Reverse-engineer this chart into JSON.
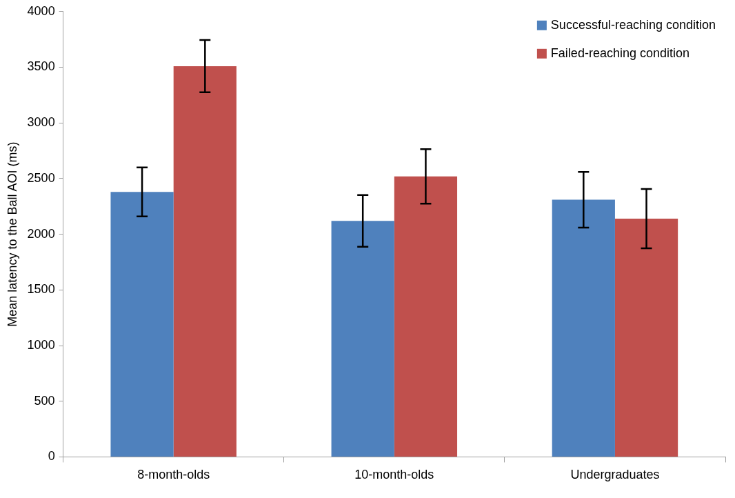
{
  "chart_data": {
    "type": "bar",
    "ylabel": "Mean latency to the Ball AOI (ms)",
    "categories": [
      "8-month-olds",
      "10-month-olds",
      "Undergraduates"
    ],
    "series": [
      {
        "name": "Successful-reaching condition",
        "color": "#4f81bd",
        "values": [
          2380,
          2120,
          2310
        ],
        "errors": [
          220,
          232,
          250
        ]
      },
      {
        "name": "Failed-reaching condition",
        "color": "#c0504d",
        "values": [
          3510,
          2520,
          2140
        ],
        "errors": [
          235,
          245,
          267
        ]
      }
    ],
    "ylim": [
      0,
      4000
    ],
    "yticks": [
      0,
      500,
      1000,
      1500,
      2000,
      2500,
      3000,
      3500,
      4000
    ],
    "grid": false,
    "legend": "top right"
  }
}
